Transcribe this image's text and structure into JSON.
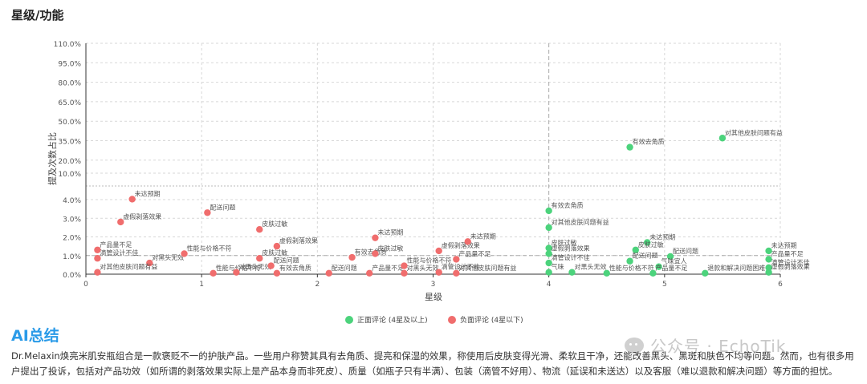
{
  "section_title": "星级/功能",
  "ai_title": "AI总结",
  "summary": "Dr.Melaxin焕亮米肌安瓶组合是一款褒贬不一的护肤产品。一些用户称赞其具有去角质、提亮和保湿的效果，称使用后皮肤变得光滑、柔软且干净，还能改善黑头、黑斑和肤色不均等问题。然而，也有很多用户提出了投诉，包括对产品功效（如所谓的剥落效果实际上是产品本身而非死皮）、质量（如瓶子只有半满）、包装（滴管不好用）、物流（延误和未送达）以及客服（难以退款和解决问题）等方面的担忧。",
  "watermark": "公众号 · EchoTik",
  "colors": {
    "positive": "#4cd37c",
    "negative": "#f06d6d",
    "axis": "#333333",
    "grid": "#d7d7d7",
    "ref_line": "#aaaaaa"
  },
  "chart_data": {
    "type": "scatter",
    "xlabel": "星级",
    "ylabel": "提及次数占比",
    "x_ticks": [
      0,
      1,
      2,
      3,
      4,
      5,
      6
    ],
    "y_ticks_low": [
      "0.0%",
      "1.0%",
      "2.0%",
      "3.0%",
      "4.0%"
    ],
    "y_ticks_high": [
      "10.0%",
      "20.0%",
      "35.0%",
      "50.0%",
      "65.0%",
      "80.0%",
      "95.0%",
      "110.0%"
    ],
    "ref_lines": {
      "x": 4,
      "y": 1.0
    },
    "grid": true,
    "legend_position": "bottom-center",
    "series": [
      {
        "name": "正面评论 (4星及以上)",
        "key": "positive",
        "points": [
          {
            "x": 4.0,
            "y": 3.4,
            "label": "有效去角质"
          },
          {
            "x": 4.0,
            "y": 2.5,
            "label": "对其他皮肤问题有益"
          },
          {
            "x": 4.0,
            "y": 1.4,
            "label": "皮肤过敏"
          },
          {
            "x": 4.0,
            "y": 1.1,
            "label": "虚假剥落效果"
          },
          {
            "x": 4.0,
            "y": 0.6,
            "label": "滴管设计不佳"
          },
          {
            "x": 4.0,
            "y": 0.1,
            "label": "气味"
          },
          {
            "x": 4.2,
            "y": 0.1,
            "label": "对黑头无效"
          },
          {
            "x": 4.7,
            "y": 30.0,
            "label": "有效去角质"
          },
          {
            "x": 5.5,
            "y": 37.0,
            "label": "对其他皮肤问题有益"
          },
          {
            "x": 4.85,
            "y": 1.7,
            "label": "未达预期"
          },
          {
            "x": 4.75,
            "y": 1.3,
            "label": "皮肤过敏"
          },
          {
            "x": 4.7,
            "y": 0.7,
            "label": "配送问题"
          },
          {
            "x": 5.05,
            "y": 0.95,
            "label": "配送问题"
          },
          {
            "x": 4.95,
            "y": 0.4,
            "label": "气味宜人"
          },
          {
            "x": 4.5,
            "y": 0.05,
            "label": "性能与价格不符"
          },
          {
            "x": 4.9,
            "y": 0.05,
            "label": "产品量不足"
          },
          {
            "x": 5.35,
            "y": 0.05,
            "label": "退款和解决问题困难"
          },
          {
            "x": 5.9,
            "y": 1.25,
            "label": "未达预期"
          },
          {
            "x": 5.9,
            "y": 0.8,
            "label": "产品量不足"
          },
          {
            "x": 5.9,
            "y": 0.35,
            "label": "滴管设计不佳"
          },
          {
            "x": 5.9,
            "y": 0.1,
            "label": "虚假剥落效果"
          }
        ]
      },
      {
        "name": "负面评论 (4星以下)",
        "key": "negative",
        "points": [
          {
            "x": 0.4,
            "y": 4.1,
            "label": "未达预期"
          },
          {
            "x": 0.3,
            "y": 2.8,
            "label": "虚假剥落效果"
          },
          {
            "x": 0.1,
            "y": 1.3,
            "label": "产品量不足"
          },
          {
            "x": 0.1,
            "y": 0.85,
            "label": "滴管设计不佳"
          },
          {
            "x": 0.55,
            "y": 0.6,
            "label": "对黑头无效"
          },
          {
            "x": 0.1,
            "y": 0.1,
            "label": "对其他皮肤问题有益"
          },
          {
            "x": 0.85,
            "y": 1.1,
            "label": "性能与价格不符"
          },
          {
            "x": 1.05,
            "y": 3.3,
            "label": "配送问题"
          },
          {
            "x": 1.1,
            "y": 0.05,
            "label": "性能与价格不符"
          },
          {
            "x": 1.3,
            "y": 0.1,
            "label": "对黑头无效"
          },
          {
            "x": 1.5,
            "y": 2.4,
            "label": "皮肤过敏"
          },
          {
            "x": 1.65,
            "y": 1.5,
            "label": "虚假剥落效果"
          },
          {
            "x": 1.5,
            "y": 0.85,
            "label": "皮肤过敏"
          },
          {
            "x": 1.6,
            "y": 0.45,
            "label": "配送问题"
          },
          {
            "x": 1.65,
            "y": 0.05,
            "label": "有效去角质"
          },
          {
            "x": 2.1,
            "y": 0.05,
            "label": "配送问题"
          },
          {
            "x": 2.3,
            "y": 0.9,
            "label": "有效去角质"
          },
          {
            "x": 2.5,
            "y": 1.95,
            "label": "未达预期"
          },
          {
            "x": 2.5,
            "y": 1.1,
            "label": "皮肤过敏"
          },
          {
            "x": 2.45,
            "y": 0.05,
            "label": "产品量不足"
          },
          {
            "x": 2.75,
            "y": 0.45,
            "label": "性能与价格不符"
          },
          {
            "x": 2.75,
            "y": 0.05,
            "label": "对黑头无效"
          },
          {
            "x": 3.05,
            "y": 1.25,
            "label": "虚假剥落效果"
          },
          {
            "x": 3.3,
            "y": 1.75,
            "label": "未达预期"
          },
          {
            "x": 3.2,
            "y": 0.8,
            "label": "产品量不足"
          },
          {
            "x": 3.05,
            "y": 0.1,
            "label": "滴管设计不佳"
          },
          {
            "x": 3.2,
            "y": 0.05,
            "label": "对其他皮肤问题有益"
          }
        ]
      }
    ]
  }
}
